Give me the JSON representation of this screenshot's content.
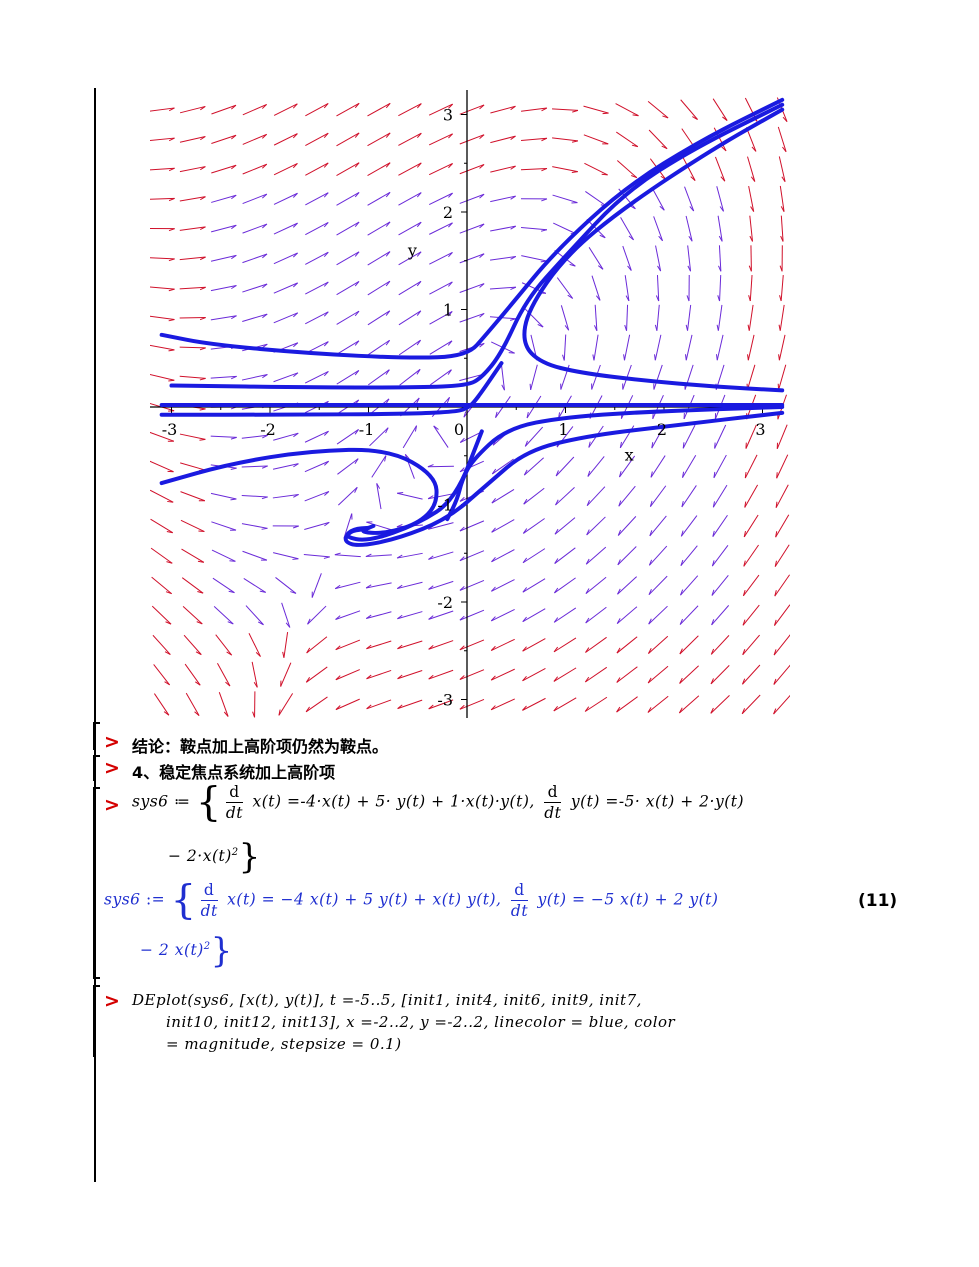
{
  "plot": {
    "x_ticks": [
      "-3",
      "-2",
      "-1",
      "0",
      "1",
      "2",
      "3"
    ],
    "y_ticks": [
      "3",
      "2",
      "1",
      "-1",
      "-2",
      "-3"
    ],
    "xlabel": "x",
    "ylabel": "y",
    "colors": {
      "curve": "#1a1ae0",
      "arrow_a": "#d0102a",
      "arrow_b": "#6a2ad8",
      "axes": "#000000"
    }
  },
  "chart_data": {
    "type": "scatter",
    "title": "",
    "xlabel": "x",
    "ylabel": "y",
    "xlim": [
      -3.1,
      3.2
    ],
    "ylim": [
      -3.1,
      3.1
    ],
    "x_ticks": [
      -3,
      -2,
      -1,
      0,
      1,
      2,
      3
    ],
    "y_ticks": [
      -3,
      -2,
      -1,
      1,
      2,
      3
    ],
    "grid": false,
    "legend": "none",
    "field": "direction field dx/dt = -4x + 5y + xy, dy/dt = -5x + 2y - 2x^2 style phase portrait",
    "series": [
      {
        "x": [
          3.2,
          2.4,
          1.6,
          0.9,
          0.45,
          0.2,
          0.0,
          -0.6,
          -1.6,
          -2.6,
          -3.1
        ],
        "y": [
          3.15,
          2.75,
          2.25,
          1.6,
          1.05,
          0.75,
          0.52,
          0.5,
          0.55,
          0.64,
          0.74
        ]
      },
      {
        "x": [
          3.2,
          2.3,
          1.6,
          1.0,
          0.6,
          0.35,
          0.15,
          0.0,
          -0.5,
          -1.5,
          -3.0
        ],
        "y": [
          3.1,
          2.65,
          2.2,
          1.55,
          1.1,
          0.55,
          0.3,
          0.22,
          0.2,
          0.2,
          0.22
        ]
      },
      {
        "x": [
          3.2,
          2.5,
          1.6,
          1.0,
          0.62,
          0.56,
          0.75,
          1.15,
          1.8,
          2.5,
          3.2
        ],
        "y": [
          3.05,
          2.65,
          2.05,
          1.55,
          1.0,
          0.65,
          0.45,
          0.35,
          0.27,
          0.21,
          0.17
        ]
      },
      {
        "x": [
          -3.1,
          0.0,
          3.2
        ],
        "y": [
          0.02,
          0.02,
          0.02
        ]
      },
      {
        "x": [
          -3.1,
          -1.8,
          -0.6,
          -0.15,
          0.0,
          0.1,
          0.35
        ],
        "y": [
          -0.08,
          -0.08,
          -0.07,
          -0.05,
          -0.02,
          0.08,
          0.45
        ]
      },
      {
        "x": [
          3.2,
          2.0,
          1.0,
          0.4,
          0.05,
          -0.05,
          -0.1,
          -0.2
        ],
        "y": [
          0.0,
          -0.04,
          -0.1,
          -0.22,
          -0.55,
          -0.75,
          -0.95,
          -1.15
        ]
      },
      {
        "x": [
          -3.1,
          -2.4,
          -1.6,
          -0.8,
          -0.32,
          -0.3,
          -0.5,
          -0.85,
          -1.1,
          -0.95
        ],
        "y": [
          -0.78,
          -0.58,
          -0.45,
          -0.43,
          -0.7,
          -1.0,
          -1.2,
          -1.3,
          -1.28,
          -1.22
        ]
      },
      {
        "x": [
          0.15,
          -0.12,
          -0.5,
          -1.0,
          -1.25,
          -1.15,
          -1.0
        ],
        "y": [
          -0.25,
          -0.95,
          -1.2,
          -1.38,
          -1.33,
          -1.25,
          -1.24
        ]
      },
      {
        "x": [
          3.2,
          2.0,
          1.2,
          0.6,
          0.2,
          -0.2,
          -0.7,
          -1.1,
          -1.25,
          -1.2,
          -1.05,
          -1.02
        ],
        "y": [
          -0.06,
          -0.2,
          -0.3,
          -0.45,
          -0.8,
          -1.15,
          -1.35,
          -1.43,
          -1.38,
          -1.28,
          -1.25,
          -1.28
        ]
      }
    ]
  },
  "lines": {
    "conclusion": "结论：鞍点加上高阶项仍然为鞍点。",
    "section4": "4、稳定焦点系统加上高阶项"
  },
  "input1": {
    "lhs": "sys6",
    "assign": " ≔ ",
    "d": "d",
    "dt": "dt",
    "eq1": "x(t) =-4·x(t) + 5· y(t) + 1·x(t)·y(t),",
    "eq2": "y(t) =-5· x(t) + 2·y(t)",
    "line2": "− 2·x(t)",
    "sq": "2"
  },
  "output1": {
    "lhs": "sys6",
    "assign": " := ",
    "d": "d",
    "dt": "dt",
    "eq1": "x(t) = −4 x(t) + 5 y(t) + x(t) y(t),",
    "eq2": "y(t) = −5 x(t) + 2 y(t)",
    "line2": "− 2 x(t)",
    "sq": "2",
    "label": "(11)"
  },
  "input2": {
    "line1": "DEplot(sys6, [x(t), y(t)], t =-5..5, [init1, init4, init6, init9, init7,",
    "line2": "init10, init12, init13], x =-2..2, y =-2..2, linecolor = blue, color",
    "line3": "= magnitude, stepsize = 0.1)"
  },
  "prompt_symbol": ">"
}
